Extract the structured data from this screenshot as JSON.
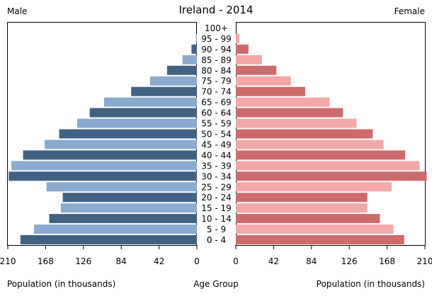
{
  "chart_data": {
    "type": "bar",
    "title": "Ireland - 2014",
    "left_label": "Male",
    "right_label": "Female",
    "xlabel_left": "Population (in thousands)",
    "xlabel_center": "Age Group",
    "xlabel_right": "Population (in thousands)",
    "categories": [
      "100+",
      "95 - 99",
      "90 - 94",
      "85 - 89",
      "80 - 84",
      "75 - 79",
      "70 - 74",
      "65 - 69",
      "60 - 64",
      "55 - 59",
      "50 - 54",
      "45 - 49",
      "40 - 44",
      "35 - 39",
      "30 - 34",
      "25 - 29",
      "20 - 24",
      "15 - 19",
      "10 - 14",
      "5 - 9",
      "0 - 4"
    ],
    "series": [
      {
        "name": "Male",
        "side": "left",
        "values": [
          0,
          1,
          6,
          16,
          33,
          52,
          73,
          103,
          119,
          133,
          153,
          169,
          193,
          206,
          209,
          167,
          149,
          151,
          164,
          181,
          196
        ]
      },
      {
        "name": "Female",
        "side": "right",
        "values": [
          0,
          4,
          14,
          29,
          45,
          61,
          77,
          104,
          119,
          134,
          152,
          164,
          188,
          204,
          212,
          173,
          146,
          146,
          160,
          175,
          187
        ]
      }
    ],
    "xlim": [
      0,
      210
    ],
    "xticks": [
      "210",
      "168",
      "126",
      "84",
      "42",
      "0"
    ],
    "xticks_right": [
      "0",
      "42",
      "84",
      "126",
      "168",
      "210"
    ],
    "colors": {
      "male_dark": "#426284",
      "male_light": "#8aabcf",
      "female_dark": "#cd6a6b",
      "female_light": "#f2a8a7"
    }
  }
}
